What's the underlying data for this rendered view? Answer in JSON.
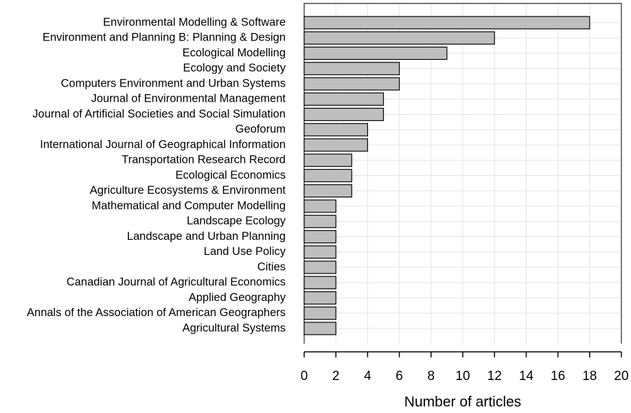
{
  "chart_data": {
    "type": "barh",
    "categories": [
      "Environmental Modelling & Software",
      "Environment and Planning B: Planning & Design",
      "Ecological Modelling",
      "Ecology and Society",
      "Computers Environment and Urban Systems",
      "Journal of Environmental Management",
      "Journal of Artificial Societies and Social Simulation",
      "Geoforum",
      "International Journal of Geographical Information",
      "Transportation Research Record",
      "Ecological Economics",
      "Agriculture Ecosystems & Environment",
      "Mathematical and Computer Modelling",
      "Landscape Ecology",
      "Landscape and Urban Planning",
      "Land Use Policy",
      "Cities",
      "Canadian Journal of Agricultural Economics",
      "Applied Geography",
      "Annals of the Association of American Geographers",
      "Agricultural Systems"
    ],
    "values": [
      18,
      12,
      9,
      6,
      6,
      5,
      5,
      4,
      4,
      3,
      3,
      3,
      2,
      2,
      2,
      2,
      2,
      2,
      2,
      2,
      2
    ],
    "color": "#bebebe",
    "xlabel": "Number of articles",
    "xlim": [
      0,
      20
    ],
    "xticks": [
      0,
      2,
      4,
      6,
      8,
      10,
      12,
      14,
      16,
      18,
      20
    ],
    "grid": true
  }
}
